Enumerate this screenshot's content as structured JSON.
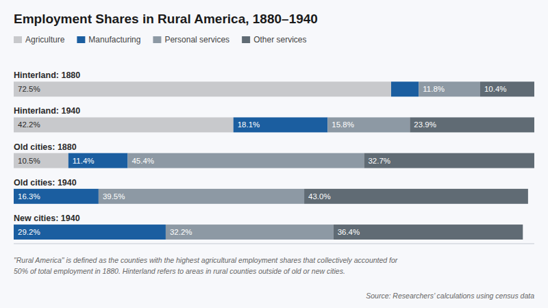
{
  "chart_data": {
    "type": "bar",
    "orientation": "horizontal",
    "stacked": true,
    "title": "Employment Shares in Rural America, 1880–1940",
    "categories": [
      "Hinterland: 1880",
      "Hinterland: 1940",
      "Old cities: 1880",
      "Old cities: 1940",
      "New cities: 1940"
    ],
    "series": [
      {
        "name": "Agriculture",
        "color": "#c8c9cc",
        "values": [
          72.5,
          42.2,
          10.5,
          0.0,
          0.0
        ],
        "value_labels": [
          "72.5%",
          "42.2%",
          "10.5%",
          null,
          null
        ]
      },
      {
        "name": "Manufacturing",
        "color": "#1b5ea0",
        "values": [
          5.3,
          18.1,
          11.4,
          16.3,
          29.2
        ],
        "value_labels": [
          null,
          "18.1%",
          "11.4%",
          "16.3%",
          "29.2%"
        ]
      },
      {
        "name": "Personal services",
        "color": "#8d99a4",
        "values": [
          11.8,
          15.8,
          45.4,
          39.5,
          32.2
        ],
        "value_labels": [
          "11.8%",
          "15.8%",
          "45.4%",
          "39.5%",
          "32.2%"
        ]
      },
      {
        "name": "Other services",
        "color": "#606b74",
        "values": [
          10.4,
          23.9,
          32.7,
          43.0,
          36.4
        ],
        "value_labels": [
          "10.4%",
          "23.9%",
          "32.7%",
          "43.0%",
          "36.4%"
        ]
      }
    ],
    "xlim": [
      0,
      100
    ],
    "data_labels": true,
    "tick_labels": "y",
    "legend": "upper left",
    "annotations": [
      "\"Rural America\" is defined as the counties with the highest agricultural employment shares that collectively accounted for",
      "50% of total employment in 1880. Hinterland refers to areas in rural counties outside of old or new cities.",
      "Source: Researchers’ calculations using census data"
    ]
  }
}
